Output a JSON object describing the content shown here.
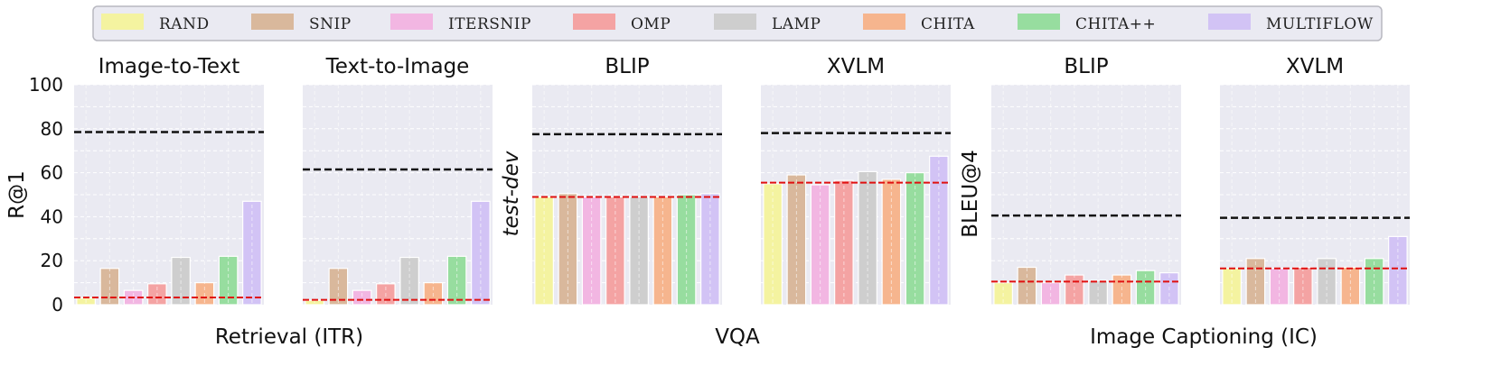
{
  "legend": [
    {
      "label": "RAND",
      "color": "#f4f3a0"
    },
    {
      "label": "SNIP",
      "color": "#d9b89c"
    },
    {
      "label": "ITERSNIP",
      "color": "#f2b6e2"
    },
    {
      "label": "OMP",
      "color": "#f4a3a3"
    },
    {
      "label": "LAMP",
      "color": "#cecece"
    },
    {
      "label": "CHITA",
      "color": "#f6b58e"
    },
    {
      "label": "CHITA++",
      "color": "#97dd9f"
    },
    {
      "label": "MULTIFLOW",
      "color": "#d2c3f5"
    }
  ],
  "groups": [
    "Retrieval (ITR)",
    "VQA",
    "Image Captioning (IC)"
  ],
  "chart_data": [
    {
      "type": "bar",
      "title": "Image-to-Text",
      "ylabel": "R@1",
      "ylim": [
        0,
        100
      ],
      "yticks": [
        "0",
        "20",
        "40",
        "60",
        "80",
        "100"
      ],
      "categories": [
        "RAND",
        "SNIP",
        "ITERSNIP",
        "OMP",
        "LAMP",
        "CHITA",
        "CHITA++",
        "MULTIFLOW"
      ],
      "values": [
        3,
        16.5,
        6.5,
        9.5,
        21.5,
        10,
        22,
        47
      ],
      "reference_lines": {
        "black_dashed": 78.5,
        "red_dashed": 3.3
      }
    },
    {
      "type": "bar",
      "title": "Text-to-Image",
      "ylabel": "",
      "ylim": [
        0,
        100
      ],
      "categories": [
        "RAND",
        "SNIP",
        "ITERSNIP",
        "OMP",
        "LAMP",
        "CHITA",
        "CHITA++",
        "MULTIFLOW"
      ],
      "values": [
        2,
        16.5,
        6.5,
        9.5,
        21.5,
        10,
        22,
        47
      ],
      "reference_lines": {
        "black_dashed": 61.5,
        "red_dashed": 2.2
      }
    },
    {
      "type": "bar",
      "title": "BLIP",
      "ylabel": "test-dev",
      "ylim": [
        0,
        100
      ],
      "categories": [
        "RAND",
        "SNIP",
        "ITERSNIP",
        "OMP",
        "LAMP",
        "CHITA",
        "CHITA++",
        "MULTIFLOW"
      ],
      "values": [
        49,
        50.5,
        49,
        49,
        49,
        49,
        50,
        50.5
      ],
      "reference_lines": {
        "black_dashed": 77.5,
        "red_dashed": 49
      }
    },
    {
      "type": "bar",
      "title": "XVLM",
      "ylabel": "",
      "ylim": [
        0,
        100
      ],
      "categories": [
        "RAND",
        "SNIP",
        "ITERSNIP",
        "OMP",
        "LAMP",
        "CHITA",
        "CHITA++",
        "MULTIFLOW"
      ],
      "values": [
        55,
        59,
        54.5,
        56.5,
        60.5,
        57,
        60,
        67.5
      ],
      "reference_lines": {
        "black_dashed": 78,
        "red_dashed": 55.5
      }
    },
    {
      "type": "bar",
      "title": "BLIP",
      "ylabel": "BLEU@4",
      "ylim": [
        0,
        100
      ],
      "categories": [
        "RAND",
        "SNIP",
        "ITERSNIP",
        "OMP",
        "LAMP",
        "CHITA",
        "CHITA++",
        "MULTIFLOW"
      ],
      "values": [
        10,
        17,
        10,
        13.5,
        11,
        13.5,
        15.5,
        14.5
      ],
      "reference_lines": {
        "black_dashed": 40.5,
        "red_dashed": 10.5
      }
    },
    {
      "type": "bar",
      "title": "XVLM",
      "ylabel": "",
      "ylim": [
        0,
        100
      ],
      "categories": [
        "RAND",
        "SNIP",
        "ITERSNIP",
        "OMP",
        "LAMP",
        "CHITA",
        "CHITA++",
        "MULTIFLOW"
      ],
      "values": [
        16.5,
        21,
        16.5,
        17,
        21,
        17,
        21,
        31
      ],
      "reference_lines": {
        "black_dashed": 39.5,
        "red_dashed": 16.5
      }
    }
  ]
}
